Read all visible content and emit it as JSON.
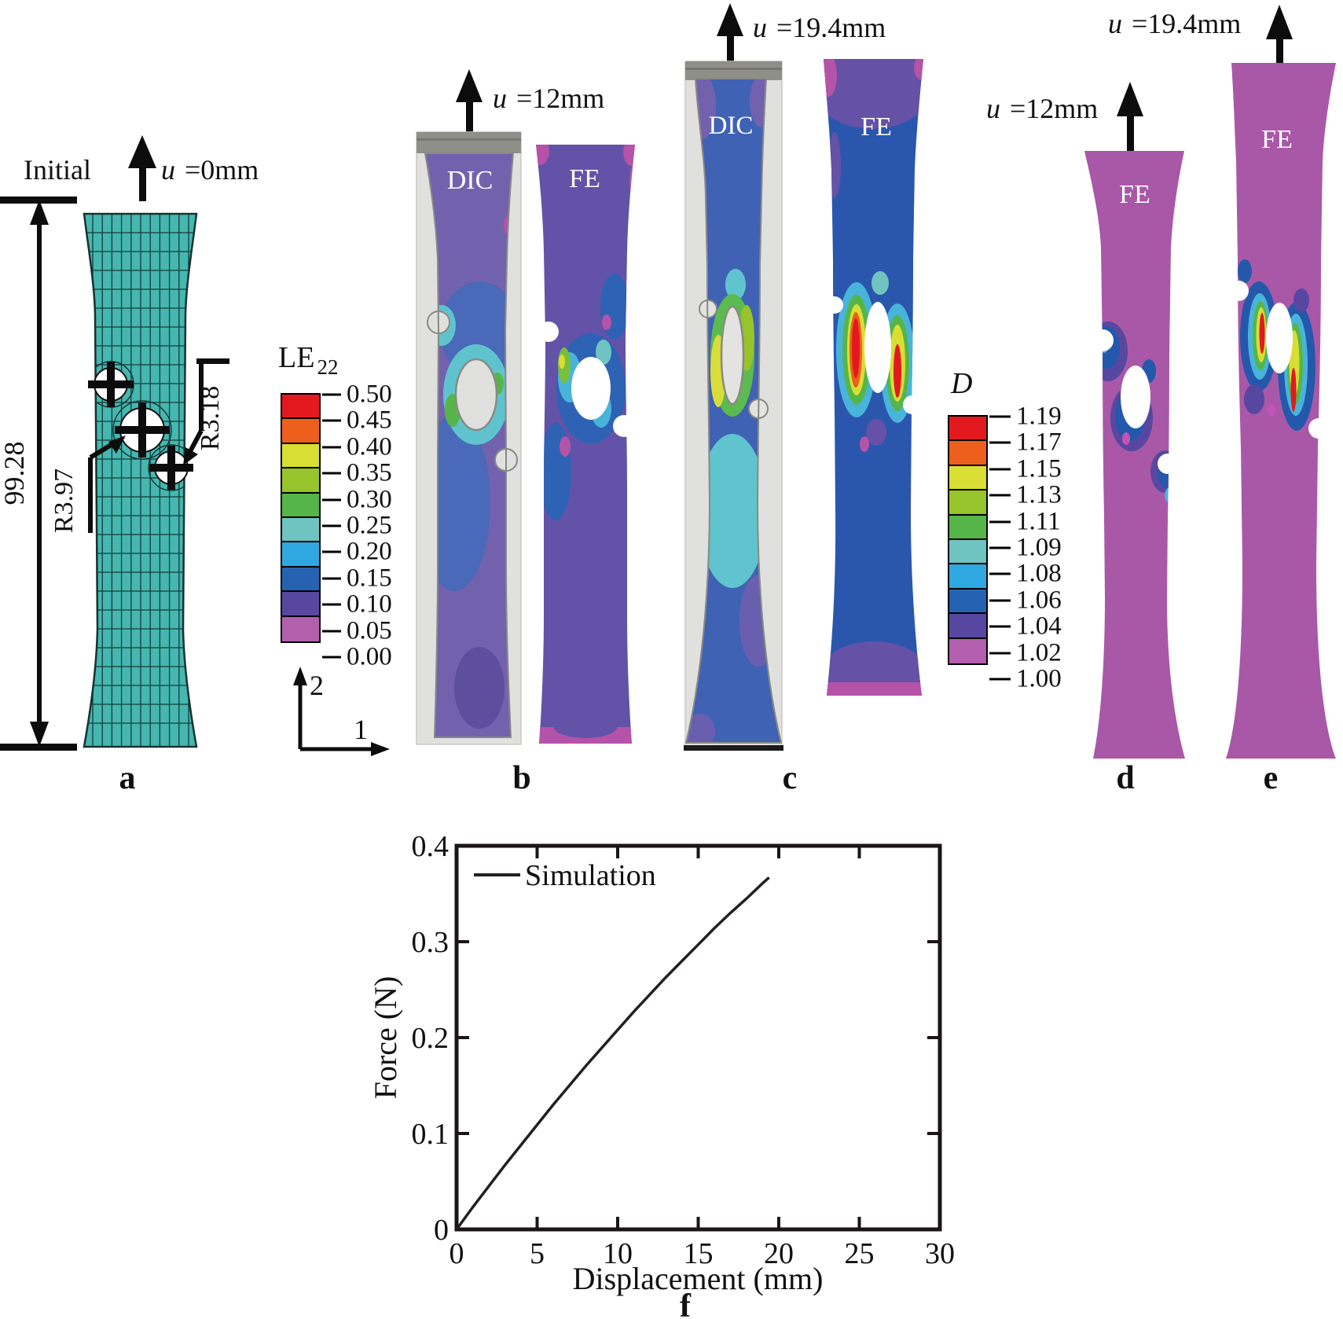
{
  "colors": {
    "scale_top_to_bottom": [
      "#e2191f",
      "#ec5f1c",
      "#d8de33",
      "#97c42a",
      "#56b549",
      "#6fc4c1",
      "#2fa8e1",
      "#2563b2",
      "#5847a0",
      "#b25fae"
    ],
    "mesh_teal": "#45b7b0",
    "fe_purple": "#6253a8",
    "fe_orchid": "#a958a8",
    "dic_purple": "#7262ae",
    "dic_blue": "#4062b4"
  },
  "panel_a": {
    "label": "a",
    "state_label": "Initial",
    "u_var": "u",
    "u_value": "=0mm",
    "height_dimension": "99.28",
    "radius_label_big": "R3.97",
    "radius_label_small": "R3.18"
  },
  "legend_le": {
    "title": "LE",
    "subscript": "22",
    "ticks": [
      "0.50",
      "0.45",
      "0.40",
      "0.35",
      "0.30",
      "0.25",
      "0.20",
      "0.15",
      "0.10",
      "0.05",
      "0.00"
    ]
  },
  "axis_triad": {
    "up": "2",
    "right": "1"
  },
  "panel_b": {
    "label": "b",
    "u_var": "u",
    "u_value": "=12mm",
    "dic_label": "DIC",
    "fe_label": "FE"
  },
  "panel_c": {
    "label": "c",
    "u_var": "u",
    "u_value": "=19.4mm",
    "dic_label": "DIC",
    "fe_label": "FE"
  },
  "legend_d": {
    "title": "D",
    "ticks": [
      "1.19",
      "1.17",
      "1.15",
      "1.13",
      "1.11",
      "1.09",
      "1.08",
      "1.06",
      "1.04",
      "1.02",
      "1.00"
    ]
  },
  "panel_d": {
    "label": "d",
    "u_var": "u",
    "u_value": "=12mm",
    "fe_label": "FE"
  },
  "panel_e": {
    "label": "e",
    "u_var": "u",
    "u_value": "=19.4mm",
    "fe_label": "FE"
  },
  "panel_f": {
    "label": "f"
  },
  "chart_data": {
    "type": "line",
    "title": "",
    "xlabel": "Displacement (mm)",
    "ylabel": "Force (N)",
    "xlim": [
      0,
      30
    ],
    "ylim": [
      0,
      0.4
    ],
    "xticks": [
      0,
      5,
      10,
      15,
      20,
      25,
      30
    ],
    "yticks": [
      0,
      0.1,
      0.2,
      0.3,
      0.4
    ],
    "grid": false,
    "legend_position": "top-left",
    "series": [
      {
        "name": "Simulation",
        "x": [
          0,
          1,
          2,
          3,
          4,
          5,
          6,
          7,
          8,
          9,
          10,
          11,
          12,
          13,
          14,
          15,
          16,
          17,
          18,
          19,
          19.4
        ],
        "y": [
          0,
          0.023,
          0.045,
          0.067,
          0.088,
          0.109,
          0.13,
          0.15,
          0.17,
          0.189,
          0.208,
          0.227,
          0.245,
          0.263,
          0.28,
          0.297,
          0.314,
          0.33,
          0.345,
          0.361,
          0.367
        ]
      }
    ]
  }
}
